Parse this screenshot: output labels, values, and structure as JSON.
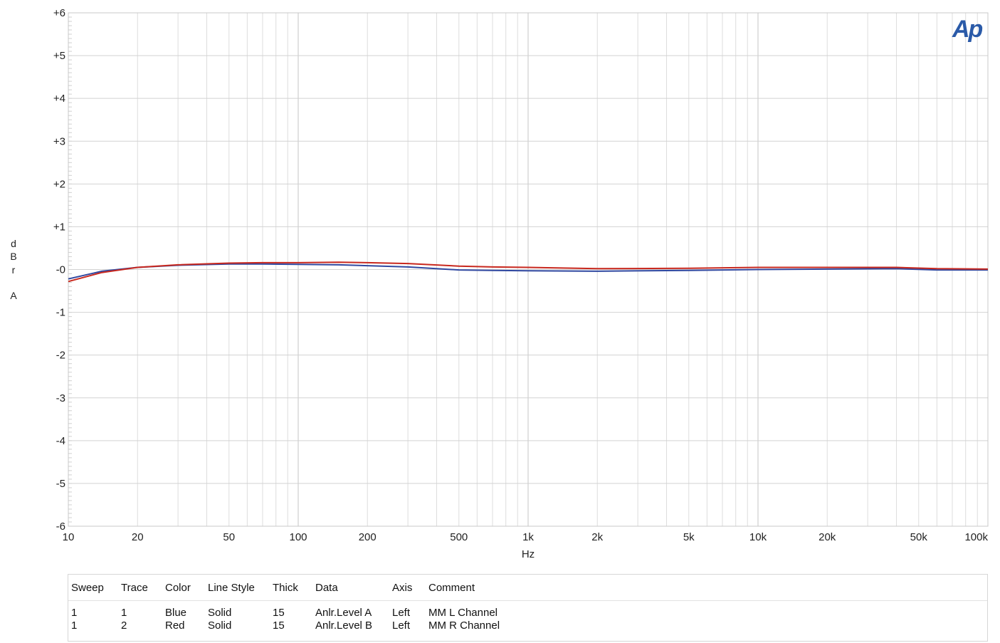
{
  "chart_data": {
    "type": "line",
    "title": "",
    "xlabel": "Hz",
    "ylabel": [
      "d",
      "B",
      "r",
      "",
      "A"
    ],
    "xscale": "log",
    "xlim": [
      10,
      100000
    ],
    "ylim": [
      -6,
      6
    ],
    "x_ticks": [
      {
        "v": 10,
        "label": "10"
      },
      {
        "v": 20,
        "label": "20"
      },
      {
        "v": 50,
        "label": "50"
      },
      {
        "v": 100,
        "label": "100"
      },
      {
        "v": 200,
        "label": "200"
      },
      {
        "v": 500,
        "label": "500"
      },
      {
        "v": 1000,
        "label": "1k"
      },
      {
        "v": 2000,
        "label": "2k"
      },
      {
        "v": 5000,
        "label": "5k"
      },
      {
        "v": 10000,
        "label": "10k"
      },
      {
        "v": 20000,
        "label": "20k"
      },
      {
        "v": 50000,
        "label": "50k"
      },
      {
        "v": 100000,
        "label": "100k"
      }
    ],
    "y_ticks": [
      {
        "v": 6,
        "label": "+6"
      },
      {
        "v": 5,
        "label": "+5"
      },
      {
        "v": 4,
        "label": "+4"
      },
      {
        "v": 3,
        "label": "+3"
      },
      {
        "v": 2,
        "label": "+2"
      },
      {
        "v": 1,
        "label": "+1"
      },
      {
        "v": 0,
        "label": "-0"
      },
      {
        "v": -1,
        "label": "-1"
      },
      {
        "v": -2,
        "label": "-2"
      },
      {
        "v": -3,
        "label": "-3"
      },
      {
        "v": -4,
        "label": "-4"
      },
      {
        "v": -5,
        "label": "-5"
      },
      {
        "v": -6,
        "label": "-6"
      }
    ],
    "grid": true,
    "series": [
      {
        "color": "#3048a0",
        "x": [
          10,
          14,
          20,
          30,
          50,
          70,
          100,
          150,
          200,
          300,
          500,
          700,
          1000,
          2000,
          5000,
          10000,
          20000,
          40000,
          60000,
          100000
        ],
        "y": [
          -0.22,
          -0.04,
          0.05,
          0.1,
          0.13,
          0.13,
          0.12,
          0.11,
          0.09,
          0.06,
          -0.01,
          -0.02,
          -0.03,
          -0.04,
          -0.02,
          0.0,
          0.01,
          0.02,
          -0.01,
          -0.01
        ]
      },
      {
        "color": "#c8281e",
        "x": [
          10,
          14,
          20,
          30,
          50,
          70,
          100,
          150,
          200,
          300,
          500,
          700,
          1000,
          2000,
          5000,
          10000,
          20000,
          40000,
          60000,
          100000
        ],
        "y": [
          -0.28,
          -0.07,
          0.05,
          0.11,
          0.15,
          0.16,
          0.16,
          0.17,
          0.16,
          0.14,
          0.08,
          0.06,
          0.05,
          0.02,
          0.03,
          0.05,
          0.05,
          0.05,
          0.02,
          0.01
        ]
      }
    ]
  },
  "logo": "Ap",
  "legend_table": {
    "headers": [
      "Sweep",
      "Trace",
      "Color",
      "Line Style",
      "Thick",
      "Data",
      "Axis",
      "Comment"
    ],
    "rows": [
      [
        "1",
        "1",
        "Blue",
        "Solid",
        "15",
        "Anlr.Level A",
        "Left",
        "MM L Channel"
      ],
      [
        "1",
        "2",
        "Red",
        "Solid",
        "15",
        "Anlr.Level B",
        "Left",
        "MM R Channel"
      ]
    ]
  }
}
